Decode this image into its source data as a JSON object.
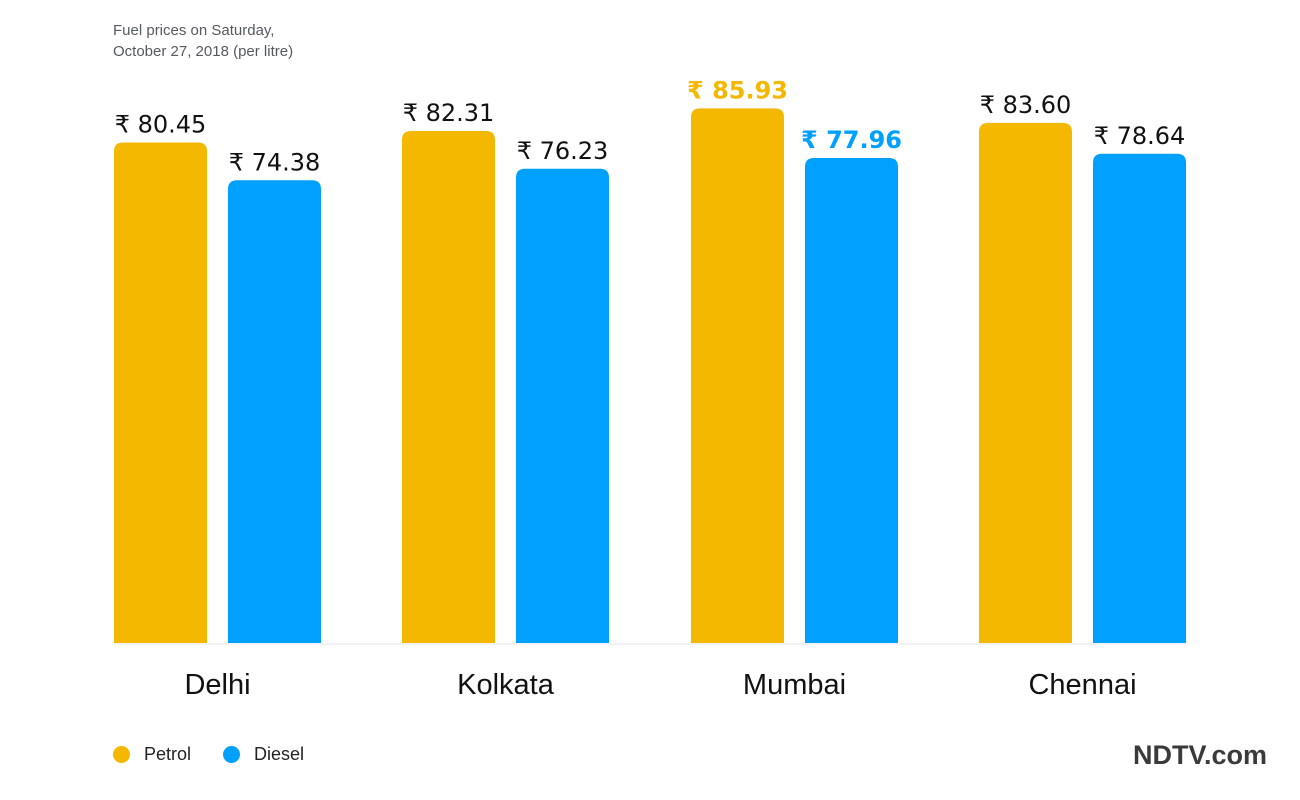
{
  "chart_data": {
    "type": "bar",
    "title": "Fuel prices on Saturday,",
    "subtitle": "October 27, 2018 (per litre)",
    "categories": [
      "Delhi",
      "Kolkata",
      "Mumbai",
      "Chennai"
    ],
    "currency_symbol": "₹",
    "series": [
      {
        "name": "Petrol",
        "color": "#f5b800",
        "values": [
          80.45,
          82.31,
          85.93,
          83.6
        ],
        "labels": [
          "₹ 80.45",
          "₹ 82.31",
          "₹ 85.93",
          "₹ 83.60"
        ]
      },
      {
        "name": "Diesel",
        "color": "#00a0ff",
        "values": [
          74.38,
          76.23,
          77.96,
          78.64
        ],
        "labels": [
          "₹ 74.38",
          "₹ 76.23",
          "₹ 77.96",
          "₹ 78.64"
        ]
      }
    ],
    "highlight_category": "Mumbai",
    "ylim": [
      0,
      86
    ],
    "grid": false,
    "legend_position": "bottom-left"
  },
  "legend": {
    "petrol_label": "Petrol",
    "diesel_label": "Diesel",
    "petrol_color": "#f5b800",
    "diesel_color": "#00a0ff"
  },
  "branding": {
    "logo_text": "NDTV.com"
  }
}
